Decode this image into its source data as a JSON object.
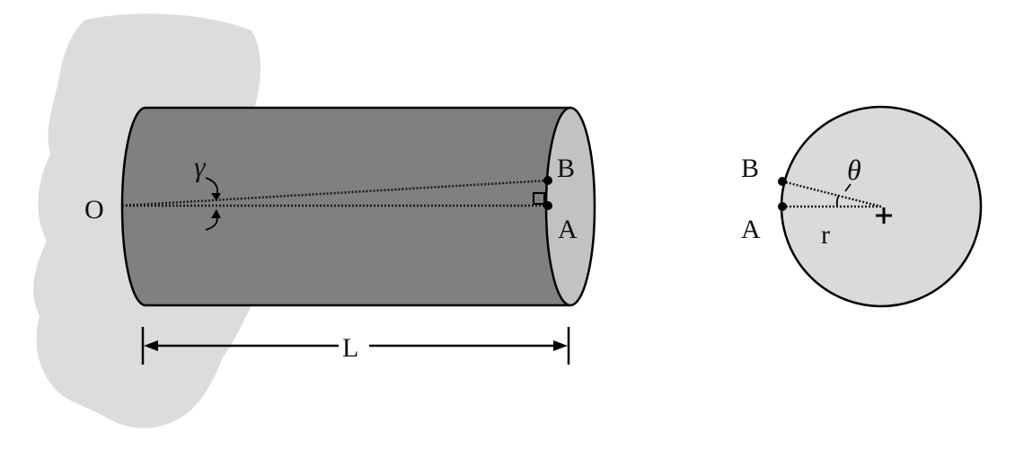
{
  "colors": {
    "wall": "#dcdcdc",
    "cylinder_body": "#808080",
    "cylinder_end": "#c2c2c2",
    "cross_section": "#dadada",
    "stroke": "#000000"
  },
  "labels": {
    "origin": "O",
    "gamma": "γ",
    "point_b": "B",
    "point_a": "A",
    "length": "L",
    "section_point_b": "B",
    "section_point_a": "A",
    "theta": "θ",
    "radius": "r"
  },
  "icons": {
    "right_angle": "right-angle-square-icon",
    "center": "center-plus-icon",
    "arrow": "arrowhead-icon"
  }
}
